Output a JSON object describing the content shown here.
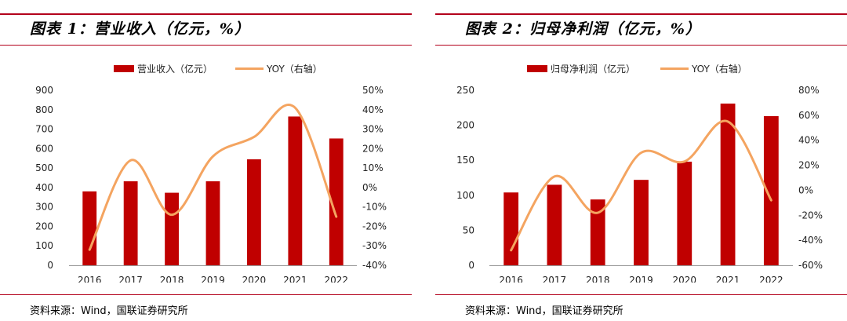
{
  "panels": [
    {
      "title": "图表 1：营业收入（亿元，%）",
      "source": "资料来源：Wind，国联证券研究所",
      "legend": {
        "bar": "营业收入（亿元）",
        "line": "YOY（右轴）"
      },
      "y_left_ticks": [
        "0",
        "100",
        "200",
        "300",
        "400",
        "500",
        "600",
        "700",
        "800",
        "900"
      ],
      "y_right_ticks": [
        "-40%",
        "-30%",
        "-20%",
        "-10%",
        "0%",
        "10%",
        "20%",
        "30%",
        "40%",
        "50%"
      ],
      "x_ticks": [
        "2016",
        "2017",
        "2018",
        "2019",
        "2020",
        "2021",
        "2022"
      ]
    },
    {
      "title": "图表 2：归母净利润（亿元，%）",
      "source": "资料来源：Wind，国联证券研究所",
      "legend": {
        "bar": "归母净利润（亿元）",
        "line": "YOY（右轴）"
      },
      "y_left_ticks": [
        "0",
        "50",
        "100",
        "150",
        "200",
        "250"
      ],
      "y_right_ticks": [
        "-60%",
        "-40%",
        "-20%",
        "0%",
        "20%",
        "40%",
        "60%",
        "80%"
      ],
      "x_ticks": [
        "2016",
        "2017",
        "2018",
        "2019",
        "2020",
        "2021",
        "2022"
      ]
    }
  ],
  "chart_data": [
    {
      "type": "bar",
      "title": "营业收入（亿元，%）",
      "categories": [
        "2016",
        "2017",
        "2018",
        "2019",
        "2020",
        "2021",
        "2022"
      ],
      "series": [
        {
          "name": "营业收入（亿元）",
          "axis": "left",
          "type": "bar",
          "values": [
            380,
            432,
            373,
            432,
            545,
            765,
            652
          ]
        },
        {
          "name": "YOY（右轴）",
          "axis": "right",
          "type": "line",
          "values": [
            -32,
            14,
            -14,
            16,
            26,
            41,
            -15
          ]
        }
      ],
      "ylim_left": [
        0,
        900
      ],
      "ylim_right": [
        -40,
        50
      ],
      "colors": {
        "bar": "#c00000",
        "line": "#f4a460"
      },
      "legend_position": "top"
    },
    {
      "type": "bar",
      "title": "归母净利润（亿元，%）",
      "categories": [
        "2016",
        "2017",
        "2018",
        "2019",
        "2020",
        "2021",
        "2022"
      ],
      "series": [
        {
          "name": "归母净利润（亿元）",
          "axis": "left",
          "type": "bar",
          "values": [
            104,
            115,
            94,
            122,
            148,
            231,
            213
          ]
        },
        {
          "name": "YOY（右轴）",
          "axis": "right",
          "type": "line",
          "values": [
            -48,
            11,
            -18,
            30,
            23,
            55,
            -8
          ]
        }
      ],
      "ylim_left": [
        0,
        250
      ],
      "ylim_right": [
        -60,
        80
      ],
      "colors": {
        "bar": "#c00000",
        "line": "#f4a460"
      },
      "legend_position": "top"
    }
  ]
}
